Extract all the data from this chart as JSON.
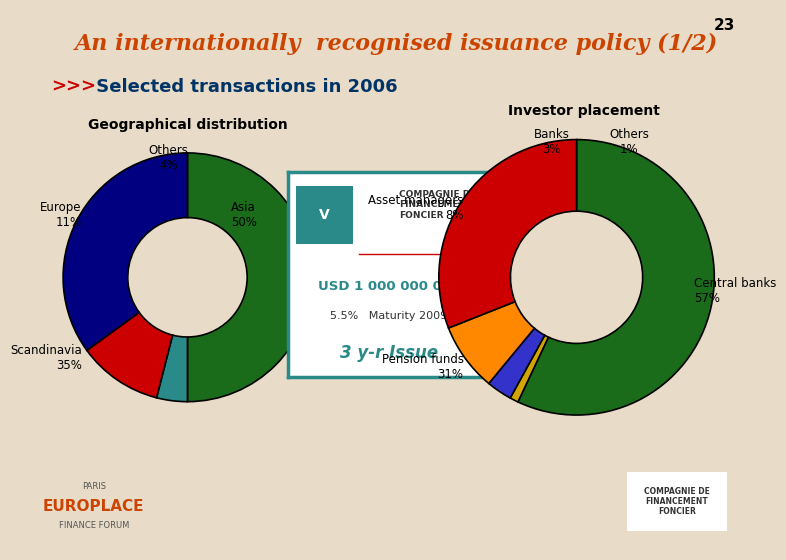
{
  "title": "An internationally  recognised issuance policy (1/2)",
  "slide_number": "23",
  "subtitle_arrow": ">>>",
  "subtitle_text": " Selected transactions in 2006",
  "bg_color": "#e8dcc8",
  "title_color": "#cc4400",
  "subtitle_color": "#003366",
  "arrow_color": "#cc0000",
  "geo_title": "Geographical distribution",
  "geo_labels": [
    "Asia",
    "Others",
    "Europe",
    "Scandinavia"
  ],
  "geo_values": [
    50,
    4,
    11,
    35
  ],
  "geo_colors": [
    "#1a6b1a",
    "#2a8a8a",
    "#cc0000",
    "#000080"
  ],
  "inv_title": "Investor placement",
  "inv_labels": [
    "Central banks",
    "Others",
    "Banks",
    "Asset managers",
    "Pension funds"
  ],
  "inv_values": [
    57,
    1,
    3,
    8,
    31
  ],
  "inv_colors": [
    "#1a6b1a",
    "#d4a500",
    "#3333cc",
    "#ff8800",
    "#cc0000"
  ],
  "card_amount": "USD 1 000 000 000",
  "card_rate": "5.5%   Maturity 2009",
  "card_issue": "3 y-r Issue",
  "card_color": "#2a8a8a",
  "card_bg": "#ffffff"
}
